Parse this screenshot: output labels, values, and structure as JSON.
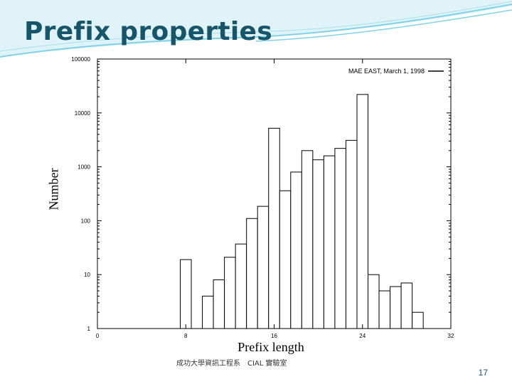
{
  "slide": {
    "title": "Prefix properties",
    "footer": "成功大學資訊工程系　CIAL 實驗室",
    "page_number": "17"
  },
  "colors": {
    "title": "#17556b",
    "accent_swoosh": "#7fd3e6",
    "bar_fill": "#ffffff",
    "bar_stroke": "#000000"
  },
  "chart_data": {
    "type": "bar",
    "xlabel": "Prefix length",
    "ylabel": "Number",
    "legend": "MAE EAST, March 1, 1998",
    "legend_position": "top-right",
    "yscale": "log",
    "xlim": [
      0,
      32
    ],
    "ylim": [
      1,
      100000
    ],
    "x_ticks": [
      "0",
      "8",
      "16",
      "24",
      "32"
    ],
    "y_ticks": [
      "1",
      "10",
      "100",
      "1000",
      "10000",
      "100000"
    ],
    "grid": false,
    "categories": [
      8,
      10,
      11,
      12,
      13,
      14,
      15,
      16,
      17,
      18,
      19,
      20,
      21,
      22,
      23,
      24,
      25,
      26,
      27,
      28,
      29
    ],
    "values": [
      19,
      4,
      8,
      21,
      37,
      110,
      185,
      5200,
      360,
      800,
      2000,
      1350,
      1600,
      2200,
      3100,
      22000,
      10,
      5,
      6,
      7,
      2
    ]
  }
}
